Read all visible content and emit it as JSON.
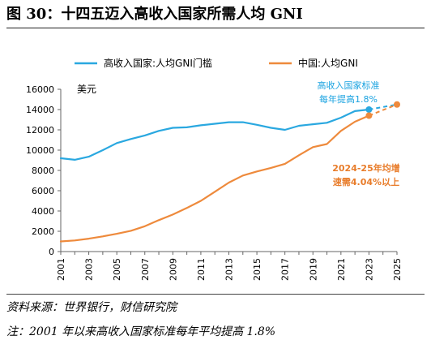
{
  "title": "图 30：十四五迈入高收入国家所需人均 GNI",
  "source": "资料来源：世界银行，财信研究院",
  "note": "注：2001 年以来高收入国家标准每年平均提高 1.8%",
  "colors": {
    "series_high": "#2aa8e0",
    "series_china": "#ee8a3c",
    "ann_high": "#1aa3e0",
    "ann_china": "#e87c2a",
    "axis": "#666666"
  },
  "chart_data": {
    "type": "line",
    "ylabel": "美元",
    "ylim": [
      0,
      16000
    ],
    "yticks": [
      0,
      2000,
      4000,
      6000,
      8000,
      10000,
      12000,
      14000,
      16000
    ],
    "xlim": [
      2001,
      2025
    ],
    "xticks": [
      2001,
      2003,
      2005,
      2007,
      2009,
      2011,
      2013,
      2015,
      2017,
      2019,
      2021,
      2023,
      2025
    ],
    "legend_position": "top",
    "series": [
      {
        "name": "高收入国家:人均GNI门槛",
        "color": "#2aa8e0",
        "x": [
          2001,
          2002,
          2003,
          2004,
          2005,
          2006,
          2007,
          2008,
          2009,
          2010,
          2011,
          2012,
          2013,
          2014,
          2015,
          2016,
          2017,
          2018,
          2019,
          2020,
          2021,
          2022,
          2023
        ],
        "values": [
          9200,
          9050,
          9350,
          10000,
          10700,
          11100,
          11450,
          11900,
          12200,
          12250,
          12450,
          12600,
          12750,
          12750,
          12500,
          12200,
          12000,
          12400,
          12550,
          12700,
          13200,
          13850,
          14000
        ],
        "projection": {
          "x": [
            2023,
            2025
          ],
          "values": [
            14000,
            14500
          ]
        }
      },
      {
        "name": "中国:人均GNI",
        "color": "#ee8a3c",
        "x": [
          2001,
          2002,
          2003,
          2004,
          2005,
          2006,
          2007,
          2008,
          2009,
          2010,
          2011,
          2012,
          2013,
          2014,
          2015,
          2016,
          2017,
          2018,
          2019,
          2020,
          2021,
          2022,
          2023
        ],
        "values": [
          1000,
          1100,
          1270,
          1500,
          1750,
          2050,
          2500,
          3100,
          3650,
          4300,
          5000,
          5900,
          6800,
          7500,
          7900,
          8250,
          8650,
          9500,
          10300,
          10600,
          11900,
          12800,
          13400
        ],
        "projection": {
          "x": [
            2023,
            2025
          ],
          "values": [
            13400,
            14500
          ]
        }
      }
    ],
    "annotations": [
      {
        "lines": [
          "高收入国家标准",
          "每年提高1.8%"
        ],
        "series": 0
      },
      {
        "lines": [
          "2024-25年均增",
          "速需4.04%以上"
        ],
        "series": 1
      }
    ]
  }
}
